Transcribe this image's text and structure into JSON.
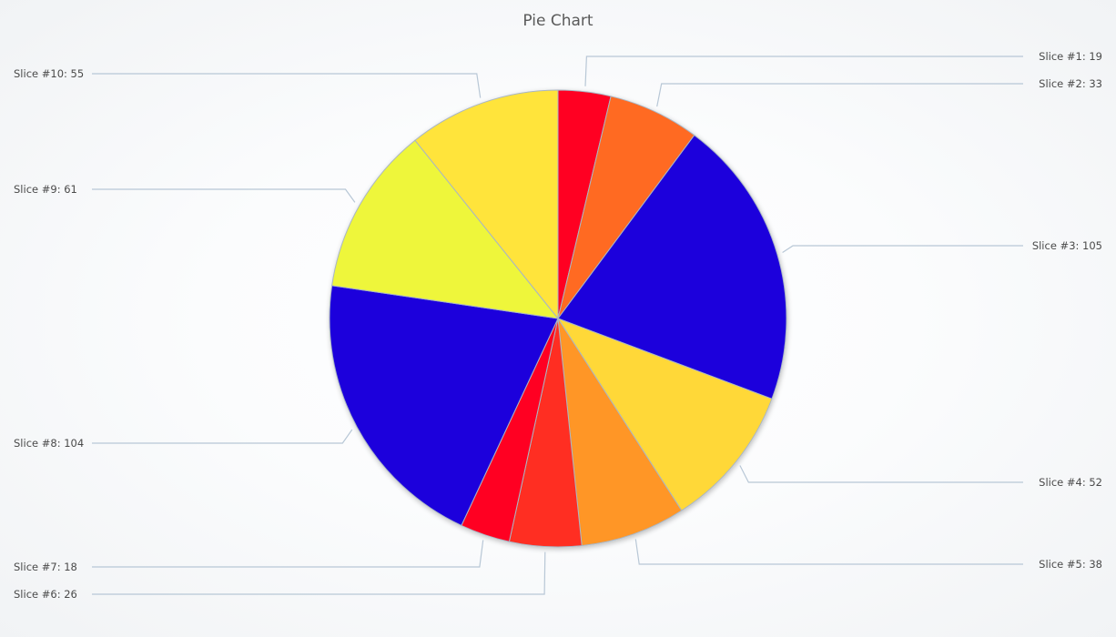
{
  "chart_data": {
    "type": "pie",
    "title": "Pie Chart",
    "slices": [
      {
        "label": "Slice #1: 19",
        "value": 19,
        "color": "#ff0022"
      },
      {
        "label": "Slice #2: 33",
        "value": 33,
        "color": "#ff6a22"
      },
      {
        "label": "Slice #3: 105",
        "value": 105,
        "color": "#1e00dc"
      },
      {
        "label": "Slice #4: 52",
        "value": 52,
        "color": "#ffd838"
      },
      {
        "label": "Slice #5: 38",
        "value": 38,
        "color": "#ff9628"
      },
      {
        "label": "Slice #6: 26",
        "value": 26,
        "color": "#ff2e22"
      },
      {
        "label": "Slice #7: 18",
        "value": 18,
        "color": "#ff0022"
      },
      {
        "label": "Slice #8: 104",
        "value": 104,
        "color": "#1e00dc"
      },
      {
        "label": "Slice #9: 61",
        "value": 61,
        "color": "#eef63a"
      },
      {
        "label": "Slice #10: 55",
        "value": 55,
        "color": "#ffe43a"
      }
    ],
    "start_angle": "top",
    "direction": "clockwise",
    "legend": "none"
  }
}
